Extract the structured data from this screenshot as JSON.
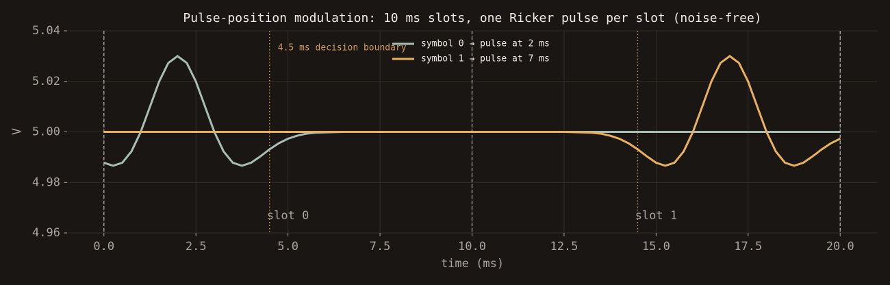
{
  "chart_data": {
    "type": "line",
    "title": "Pulse-position modulation: 10 ms slots, one Ricker pulse per slot (noise-free)",
    "xlabel": "time (ms)",
    "ylabel": "V",
    "x": [
      0,
      0.25,
      0.5,
      0.75,
      1,
      1.25,
      1.5,
      1.75,
      2,
      2.25,
      2.5,
      2.75,
      3,
      3.25,
      3.5,
      3.75,
      4,
      4.25,
      4.5,
      4.75,
      5,
      5.25,
      5.5,
      5.75,
      6,
      6.25,
      6.5,
      6.75,
      7,
      7.25,
      7.5,
      7.75,
      8,
      8.25,
      8.5,
      8.75,
      9,
      9.25,
      9.5,
      9.75,
      10,
      10.25,
      10.5,
      10.75,
      11,
      11.25,
      11.5,
      11.75,
      12,
      12.25,
      12.5,
      12.75,
      13,
      13.25,
      13.5,
      13.75,
      14,
      14.25,
      14.5,
      14.75,
      15,
      15.25,
      15.5,
      15.75,
      16,
      16.25,
      16.5,
      16.75,
      17,
      17.25,
      17.5,
      17.75,
      18,
      18.25,
      18.5,
      18.75,
      19,
      19.25,
      19.5,
      19.75,
      20
    ],
    "series": [
      {
        "name": "symbol 0 → pulse at 2 ms",
        "color": "#a9bdb3",
        "values": [
          4.9878,
          4.9866,
          4.9878,
          4.9923,
          5.0,
          5.0099,
          5.0199,
          5.0273,
          5.03,
          5.0273,
          5.0199,
          5.0099,
          5.0,
          4.9923,
          4.9878,
          4.9866,
          4.9878,
          4.9903,
          4.9931,
          4.9955,
          4.9973,
          4.9985,
          4.9993,
          4.9997,
          4.9998,
          4.9999,
          5.0,
          5.0,
          5.0,
          5.0,
          5.0,
          5.0,
          5.0,
          5.0,
          5.0,
          5.0,
          5.0,
          5.0,
          5.0,
          5.0,
          5.0,
          5.0,
          5.0,
          5.0,
          5.0,
          5.0,
          5.0,
          5.0,
          5.0,
          5.0,
          5.0,
          5.0,
          5.0,
          5.0,
          5.0,
          5.0,
          5.0,
          5.0,
          5.0,
          5.0,
          5.0,
          5.0,
          5.0,
          5.0,
          5.0,
          5.0,
          5.0,
          5.0,
          5.0,
          5.0,
          5.0,
          5.0,
          5.0,
          5.0,
          5.0,
          5.0,
          5.0,
          5.0,
          5.0,
          5.0,
          5.0
        ]
      },
      {
        "name": "symbol 1 → pulse at 7 ms",
        "color": "#e8b060",
        "values": [
          5.0,
          5.0,
          5.0,
          5.0,
          5.0,
          5.0,
          5.0,
          5.0,
          5.0,
          5.0,
          5.0,
          5.0,
          5.0,
          5.0,
          5.0,
          5.0,
          5.0,
          5.0,
          5.0,
          5.0,
          5.0,
          5.0,
          5.0,
          5.0,
          5.0,
          5.0,
          5.0,
          5.0,
          5.0,
          5.0,
          5.0,
          5.0,
          5.0,
          5.0,
          5.0,
          5.0,
          5.0,
          5.0,
          5.0,
          5.0,
          5.0,
          5.0,
          5.0,
          5.0,
          5.0,
          5.0,
          5.0,
          5.0,
          5.0,
          5.0,
          5.0,
          4.9999,
          4.9998,
          4.9997,
          4.9993,
          4.9985,
          4.9973,
          4.9955,
          4.9931,
          4.9903,
          4.9878,
          4.9866,
          4.9878,
          4.9923,
          5.0,
          5.0099,
          5.0199,
          5.0273,
          5.03,
          5.0273,
          5.0199,
          5.0099,
          5.0,
          4.9923,
          4.9878,
          4.9866,
          4.9878,
          4.9903,
          4.9931,
          4.9955,
          4.9973
        ]
      }
    ],
    "xlim": [
      -1,
      21
    ],
    "ylim": [
      4.96,
      5.04
    ],
    "xticks": [
      {
        "value": 0,
        "label": "0.0"
      },
      2.5,
      {
        "value": 5,
        "label": "5.0"
      },
      7.5,
      {
        "value": 10,
        "label": "10.0"
      },
      12.5,
      {
        "value": 15,
        "label": "15.0"
      },
      17.5,
      {
        "value": 20,
        "label": "20.0"
      }
    ],
    "yticks": [
      4.96,
      4.98,
      {
        "value": 5,
        "label": "5.00"
      },
      5.02,
      5.04
    ],
    "grid": true,
    "slot_boundaries": [
      0,
      10,
      20
    ],
    "decision_boundaries": [
      4.5,
      14.5
    ],
    "decision_label": "4.5 ms decision boundary",
    "slot_labels": [
      {
        "text": "slot 0",
        "x": 5
      },
      {
        "text": "slot 1",
        "x": 15
      }
    ],
    "legend": "upper center"
  }
}
